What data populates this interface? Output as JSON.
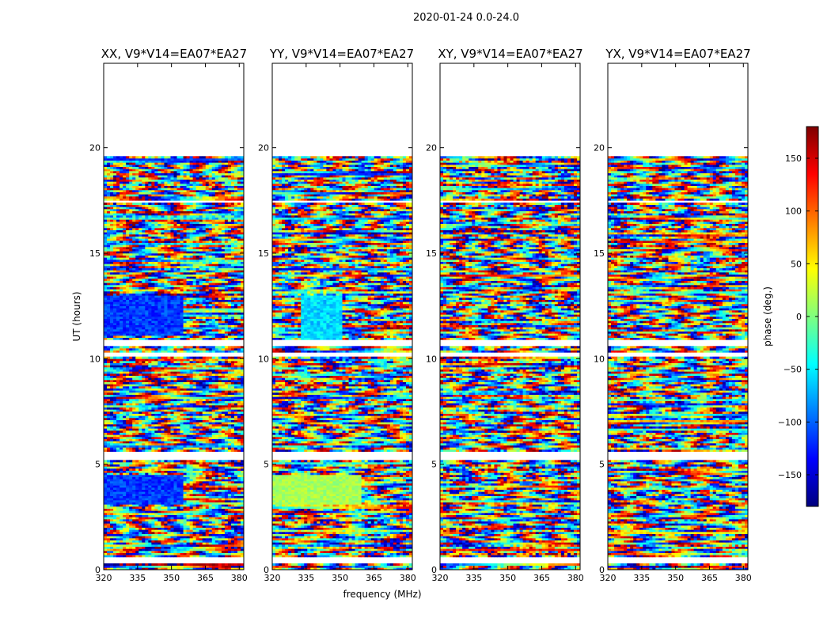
{
  "chart_data": {
    "type": "heatmap",
    "title": "2020-01-24 0.0-24.0",
    "panels": [
      {
        "title": "XX, V9*V14=EA07*EA27"
      },
      {
        "title": "YY, V9*V14=EA07*EA27"
      },
      {
        "title": "XY, V9*V14=EA07*EA27"
      },
      {
        "title": "YX, V9*V14=EA07*EA27"
      }
    ],
    "xlabel": "frequency (MHz)",
    "ylabel": "UT (hours)",
    "xlim": [
      320,
      382
    ],
    "ylim": [
      0,
      24
    ],
    "xticks": [
      320,
      335,
      350,
      365,
      380
    ],
    "yticks": [
      0,
      5,
      10,
      15,
      20
    ],
    "data_extent_hours": [
      0,
      19.6
    ],
    "colorbar": {
      "label": "phase (deg.)",
      "range": [
        -180,
        180
      ],
      "ticks": [
        -150,
        -100,
        -50,
        0,
        50,
        100,
        150
      ],
      "tick_labels": [
        "−150",
        "−100",
        "−50",
        "0",
        "50",
        "100",
        "150"
      ],
      "colormap": "jet"
    },
    "gaps_hours": [
      [
        0.35,
        0.65
      ],
      [
        5.25,
        5.65
      ],
      [
        10.15,
        10.35
      ],
      [
        10.6,
        10.9
      ],
      [
        17.4,
        17.5
      ],
      [
        19.6,
        24.0
      ]
    ]
  }
}
